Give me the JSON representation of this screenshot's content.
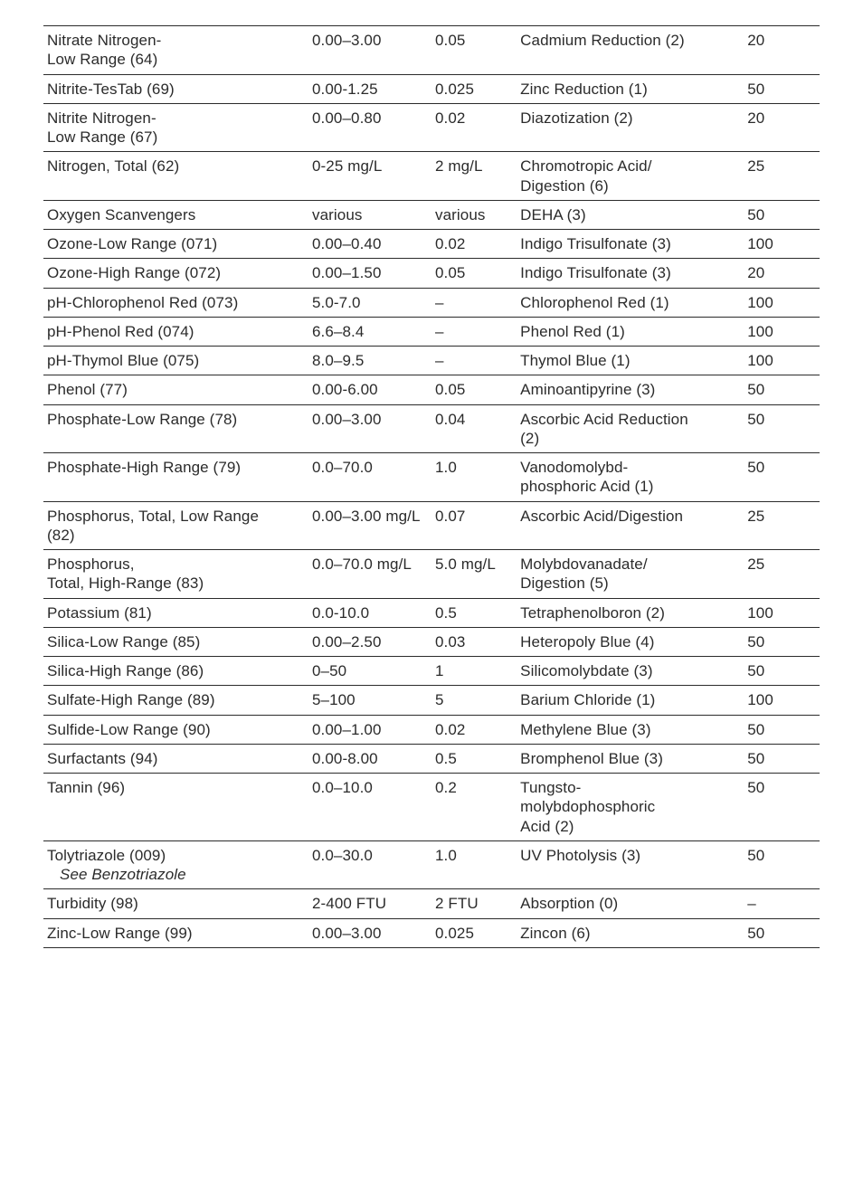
{
  "table": {
    "border_color": "#2b2b2b",
    "text_color": "#2b2b2b",
    "font_size_pt": 13,
    "rows": [
      {
        "name_lines": [
          "Nitrate Nitrogen-",
          "Low Range (64)"
        ],
        "range": "0.00–3.00",
        "mdl": "0.05",
        "method": [
          "Cadmium Reduction (2)"
        ],
        "tests": "20"
      },
      {
        "name_lines": [
          "Nitrite-TesTab (69)"
        ],
        "range": "0.00-1.25",
        "mdl": "0.025",
        "method": [
          "Zinc Reduction (1)"
        ],
        "tests": "50"
      },
      {
        "name_lines": [
          "Nitrite Nitrogen-",
          "Low Range (67)"
        ],
        "range": "0.00–0.80",
        "mdl": "0.02",
        "method": [
          "Diazotization (2)"
        ],
        "tests": "20"
      },
      {
        "name_lines": [
          "Nitrogen, Total (62)"
        ],
        "range": "0-25 mg/L",
        "mdl": "2 mg/L",
        "method": [
          "Chromotropic Acid/",
          "Digestion (6)"
        ],
        "tests": "25"
      },
      {
        "name_lines": [
          "Oxygen Scanvengers"
        ],
        "range": "various",
        "mdl": "various",
        "method": [
          "DEHA (3)"
        ],
        "tests": "50"
      },
      {
        "name_lines": [
          "Ozone-Low Range (071)"
        ],
        "range": "0.00–0.40",
        "mdl": "0.02",
        "method": [
          "Indigo Trisulfonate (3)"
        ],
        "tests": "100"
      },
      {
        "name_lines": [
          "Ozone-High Range (072)"
        ],
        "range": "0.00–1.50",
        "mdl": "0.05",
        "method": [
          "Indigo Trisulfonate (3)"
        ],
        "tests": "20"
      },
      {
        "name_lines": [
          "pH-Chlorophenol Red (073)"
        ],
        "range": "5.0-7.0",
        "mdl": "–",
        "method": [
          "Chlorophenol Red (1)"
        ],
        "tests": "100"
      },
      {
        "name_lines": [
          "pH-Phenol Red (074)"
        ],
        "range": "6.6–8.4",
        "mdl": "–",
        "method": [
          "Phenol Red (1)"
        ],
        "tests": "100"
      },
      {
        "name_lines": [
          "pH-Thymol Blue (075)"
        ],
        "range": "8.0–9.5",
        "mdl": "–",
        "method": [
          "Thymol Blue (1)"
        ],
        "tests": "100"
      },
      {
        "name_lines": [
          "Phenol (77)"
        ],
        "range": "0.00-6.00",
        "mdl": "0.05",
        "method": [
          "Aminoantipyrine (3)"
        ],
        "tests": "50"
      },
      {
        "name_lines": [
          "Phosphate-Low Range (78)"
        ],
        "range": "0.00–3.00",
        "mdl": "0.04",
        "method": [
          "Ascorbic Acid Reduction",
          "(2)"
        ],
        "tests": "50"
      },
      {
        "name_lines": [
          "Phosphate-High Range (79)"
        ],
        "range": "0.0–70.0",
        "mdl": "1.0",
        "method": [
          "Vanodomolybd-",
          "phosphoric Acid (1)"
        ],
        "tests": "50"
      },
      {
        "name_lines": [
          "Phosphorus, Total, Low Range",
          "(82)"
        ],
        "range": "0.00–3.00 mg/L",
        "mdl": "0.07",
        "method": [
          "Ascorbic Acid/Digestion"
        ],
        "tests": "25"
      },
      {
        "name_lines": [
          "Phosphorus,",
          "Total, High-Range (83)"
        ],
        "range": "0.0–70.0 mg/L",
        "mdl": "5.0 mg/L",
        "method": [
          "Molybdovanadate/",
          "Digestion (5)"
        ],
        "tests": "25"
      },
      {
        "name_lines": [
          "Potassium (81)"
        ],
        "range": "0.0-10.0",
        "mdl": "0.5",
        "method": [
          "Tetraphenolboron (2)"
        ],
        "tests": "100"
      },
      {
        "name_lines": [
          "Silica-Low Range (85)"
        ],
        "range": "0.00–2.50",
        "mdl": "0.03",
        "method": [
          "Heteropoly Blue (4)"
        ],
        "tests": "50"
      },
      {
        "name_lines": [
          "Silica-High Range (86)"
        ],
        "range": "0–50",
        "mdl": "1",
        "method": [
          "Silicomolybdate (3)"
        ],
        "tests": "50"
      },
      {
        "name_lines": [
          "Sulfate-High Range (89)"
        ],
        "range": "5–100",
        "mdl": "5",
        "method": [
          "Barium Chloride (1)"
        ],
        "tests": "100"
      },
      {
        "name_lines": [
          "Sulfide-Low Range (90)"
        ],
        "range": "0.00–1.00",
        "mdl": "0.02",
        "method": [
          "Methylene Blue (3)"
        ],
        "tests": "50"
      },
      {
        "name_lines": [
          "Surfactants (94)"
        ],
        "range": "0.00-8.00",
        "mdl": "0.5",
        "method": [
          "Bromphenol Blue (3)"
        ],
        "tests": "50"
      },
      {
        "name_lines": [
          "Tannin (96)"
        ],
        "range": "0.0–10.0",
        "mdl": "0.2",
        "method": [
          "Tungsto-",
          "molybdophosphoric",
          "Acid (2)"
        ],
        "tests": "50"
      },
      {
        "name_lines": [
          "Tolytriazole (009)"
        ],
        "note": "See Benzotriazole",
        "range": "0.0–30.0",
        "mdl": "1.0",
        "method": [
          "UV Photolysis (3)"
        ],
        "tests": "50"
      },
      {
        "name_lines": [
          "Turbidity (98)"
        ],
        "range": "2-400 FTU",
        "mdl": "2 FTU",
        "method": [
          "Absorption (0)"
        ],
        "tests": "–"
      },
      {
        "name_lines": [
          "Zinc-Low Range (99)"
        ],
        "range": "0.00–3.00",
        "mdl": "0.025",
        "method": [
          "Zincon (6)"
        ],
        "tests": "50"
      }
    ]
  }
}
